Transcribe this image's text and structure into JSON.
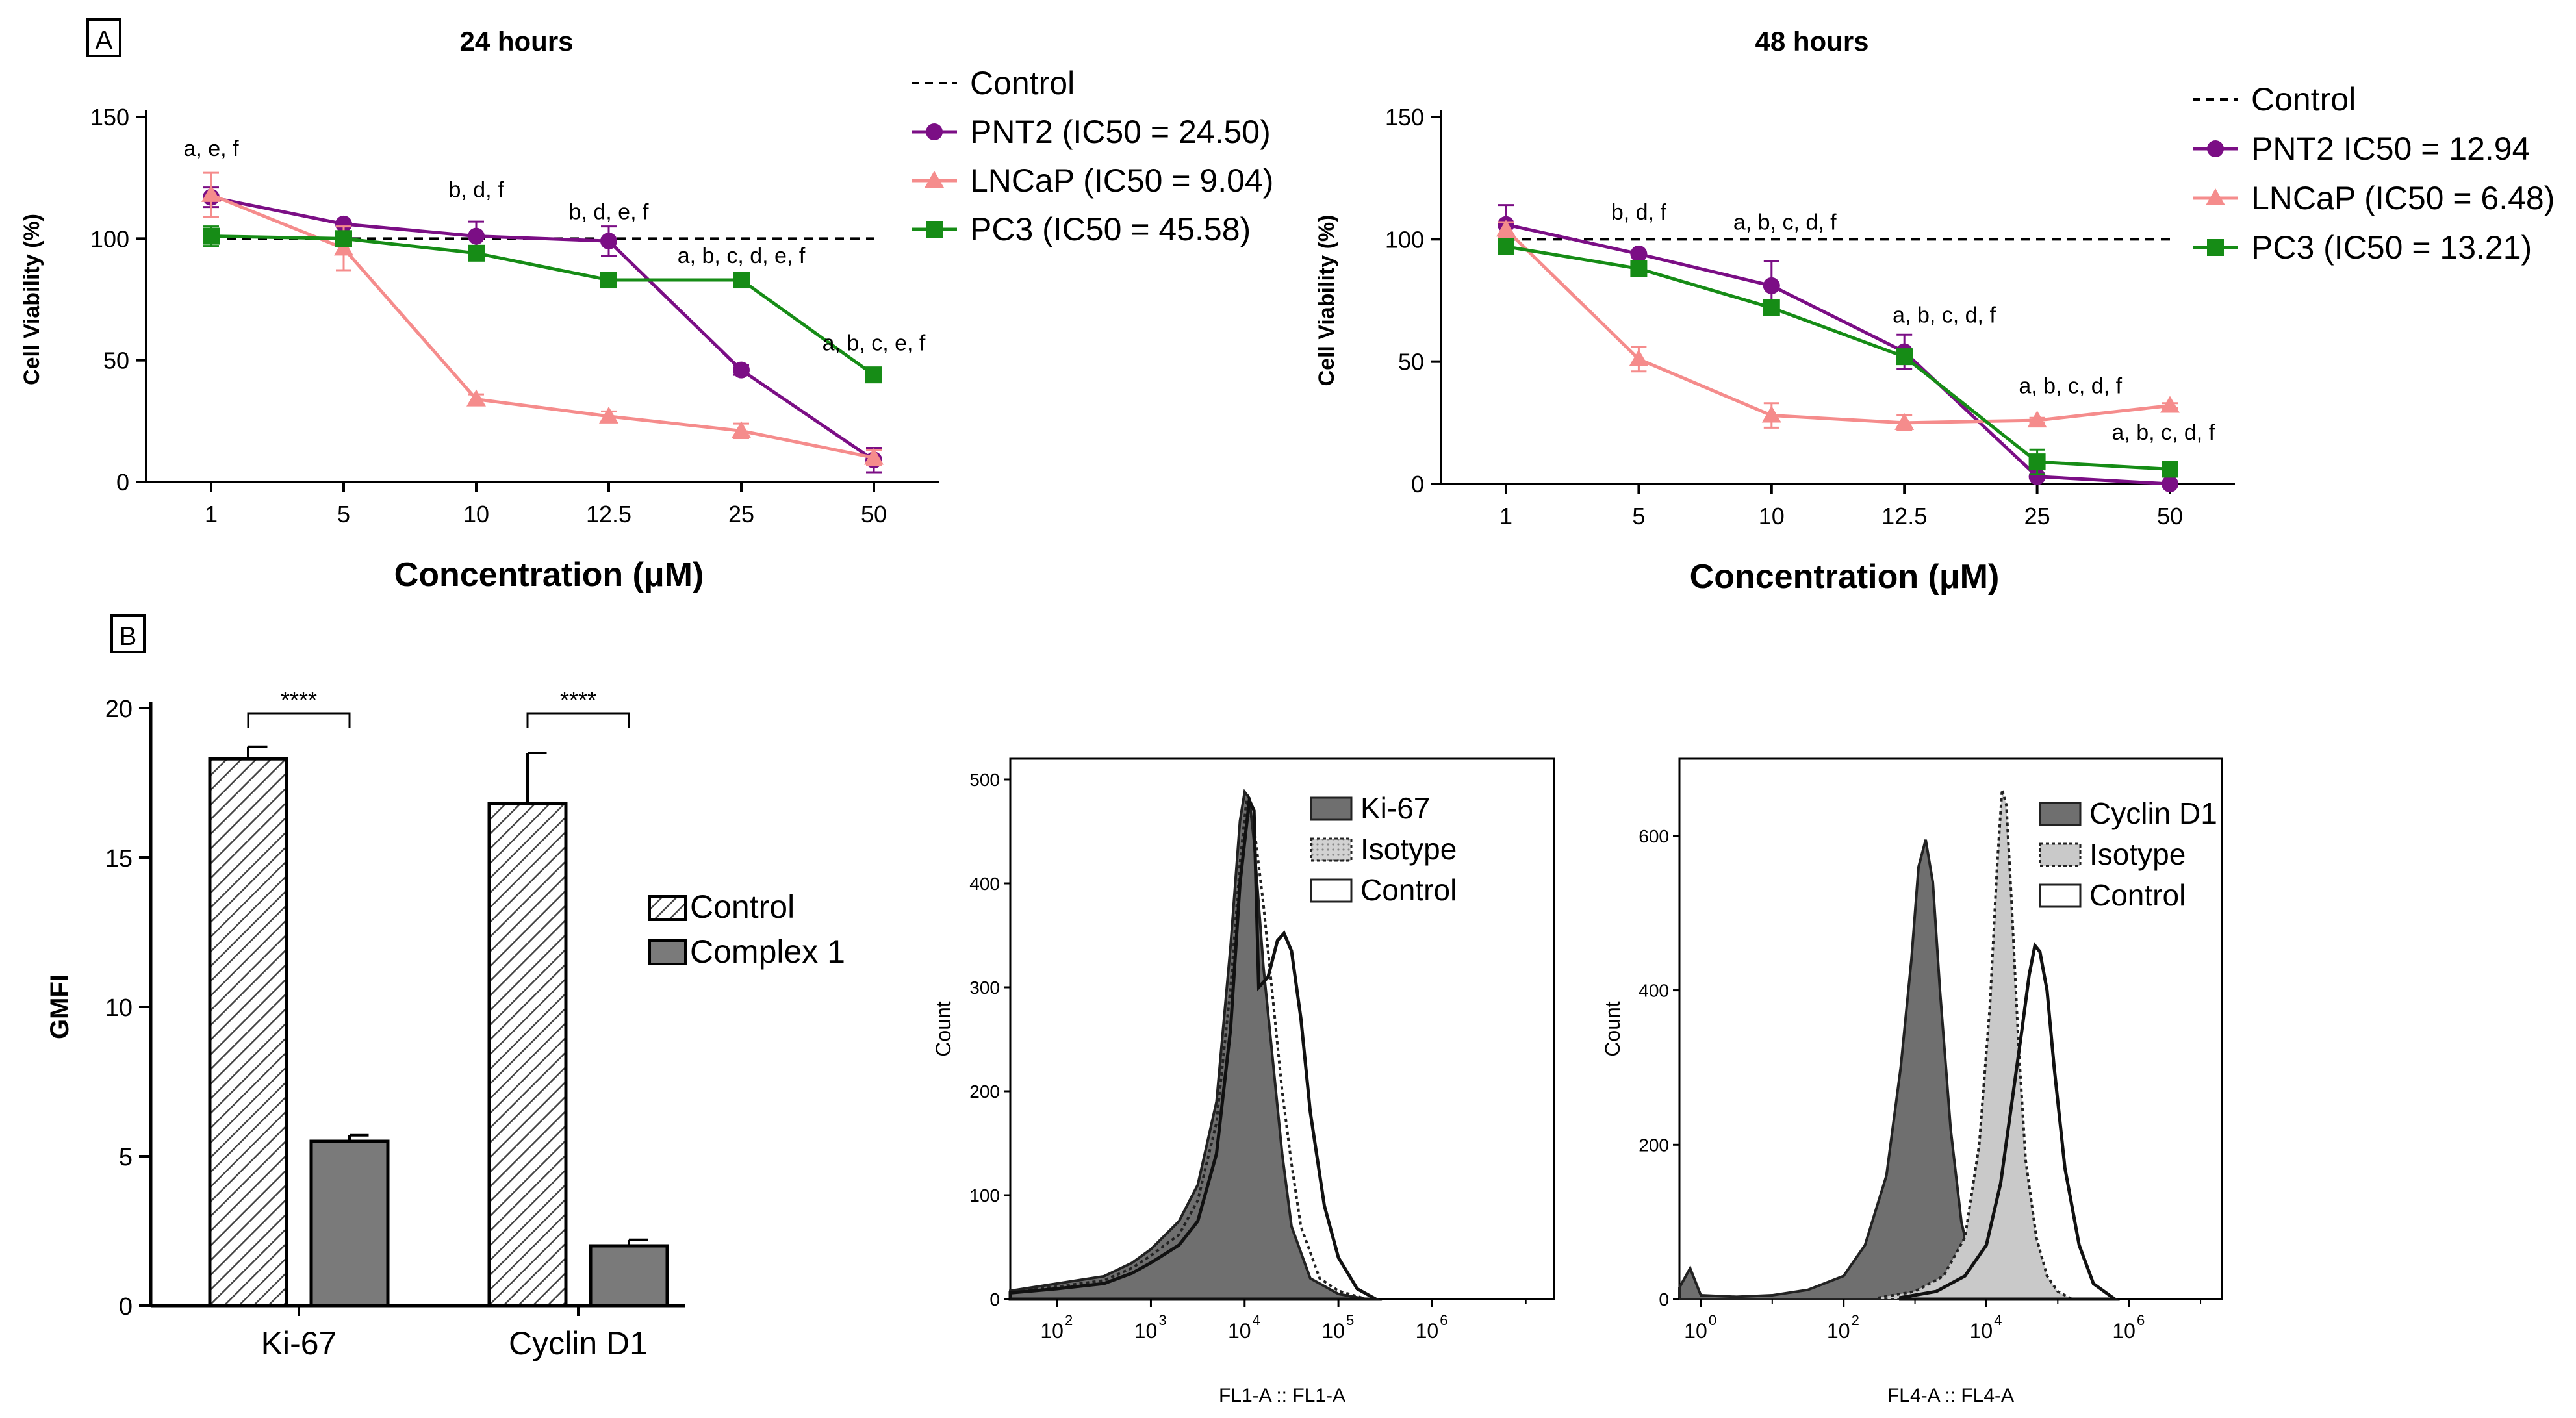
{
  "panels": {
    "A": "A",
    "B": "B"
  },
  "colors": {
    "pnt2": "#7B0E85",
    "lncap": "#F58C8C",
    "pc3": "#168C16",
    "bar_fill": "#7a7a7a",
    "hist_dark": "#6f6f6f",
    "hist_light": "#c9c9c9"
  },
  "chart_data": [
    {
      "id": "viability_24h",
      "type": "line",
      "title": "24 hours",
      "xlabel": "Concentration (μM)",
      "ylabel": "Cell Viability (%)",
      "categories": [
        "1",
        "5",
        "10",
        "12.5",
        "25",
        "50"
      ],
      "yticks": [
        "0",
        "50",
        "100",
        "150"
      ],
      "ylim": [
        0,
        150
      ],
      "control": {
        "name": "Control",
        "value": 100
      },
      "series": [
        {
          "name": "PNT2 (IC50 = 24.50)",
          "key": "pnt2",
          "marker": "circle",
          "values": [
            117,
            106,
            101,
            99,
            46,
            9
          ],
          "errors": [
            4,
            1,
            6,
            6,
            2,
            5
          ]
        },
        {
          "name": "LNCaP (IC50 = 9.04)",
          "key": "lncap",
          "marker": "triangle",
          "values": [
            118,
            96,
            34,
            27,
            21,
            10
          ],
          "errors": [
            9,
            9,
            2,
            2,
            3,
            3
          ]
        },
        {
          "name": "PC3 (IC50 = 45.58)",
          "key": "pc3",
          "marker": "square",
          "values": [
            101,
            100,
            94,
            83,
            83,
            44
          ],
          "errors": [
            4,
            2,
            2,
            2,
            1,
            1
          ]
        }
      ],
      "annotations": [
        {
          "index": 0,
          "y": 134,
          "text": "a, e, f"
        },
        {
          "index": 2,
          "y": 117,
          "text": "b, d, f"
        },
        {
          "index": 3,
          "y": 108,
          "text": "b, d, e, f"
        },
        {
          "index": 4,
          "y": 90,
          "text": "a, b, c, d, e, f"
        },
        {
          "index": 5,
          "y": 54,
          "text": "a, b, c, e, f"
        }
      ]
    },
    {
      "id": "viability_48h",
      "type": "line",
      "title": "48 hours",
      "xlabel": "Concentration (μM)",
      "ylabel": "Cell Viability (%)",
      "categories": [
        "1",
        "5",
        "10",
        "12.5",
        "25",
        "50"
      ],
      "yticks": [
        "0",
        "50",
        "100",
        "150"
      ],
      "ylim": [
        0,
        150
      ],
      "control": {
        "name": "Control",
        "value": 100
      },
      "series": [
        {
          "name": "PNT2 IC50 = 12.94",
          "key": "pnt2",
          "marker": "circle",
          "values": [
            106,
            94,
            81,
            54,
            3,
            0
          ],
          "errors": [
            8,
            1,
            10,
            7,
            1,
            1
          ]
        },
        {
          "name": "LNCaP (IC50 = 6.48)",
          "key": "lncap",
          "marker": "triangle",
          "values": [
            104,
            51,
            28,
            25,
            26,
            32
          ],
          "errors": [
            3,
            5,
            5,
            3,
            1,
            1
          ]
        },
        {
          "name": "PC3 (IC50 = 13.21)",
          "key": "pc3",
          "marker": "square",
          "values": [
            97,
            88,
            72,
            52,
            9,
            6
          ],
          "errors": [
            1,
            2,
            2,
            2,
            5,
            1
          ]
        }
      ],
      "annotations": [
        {
          "index": 1,
          "y": 108,
          "text": "b, d, f"
        },
        {
          "index": 2.1,
          "y": 104,
          "text": "a, b, c, d, f"
        },
        {
          "index": 3.3,
          "y": 66,
          "text": "a, b, c, d, f"
        },
        {
          "index": 4.25,
          "y": 37,
          "text": "a, b, c, d, f"
        },
        {
          "index": 4.95,
          "y": 18,
          "text": "a, b, c, d, f"
        }
      ]
    },
    {
      "id": "gmfi_bars",
      "type": "bar",
      "title": "",
      "xlabel": "",
      "ylabel": "GMFI",
      "categories": [
        "Ki-67",
        "Cyclin D1"
      ],
      "ylim": [
        0,
        20
      ],
      "yticks": [
        "0",
        "5",
        "10",
        "15",
        "20"
      ],
      "series": [
        {
          "name": "Control",
          "pattern": "hatched",
          "values": [
            18.3,
            16.8
          ],
          "errors": [
            0.4,
            1.7
          ]
        },
        {
          "name": "Complex 1",
          "pattern": "solid",
          "values": [
            5.5,
            2.0
          ],
          "errors": [
            0.2,
            0.2
          ]
        }
      ],
      "significance": [
        "****",
        "****"
      ]
    },
    {
      "id": "ki67_histogram",
      "type": "area",
      "title": "",
      "xlabel": "FL1-A :: FL1-A",
      "ylabel": "Count",
      "yticks": [
        "0",
        "100",
        "200",
        "300",
        "400",
        "500"
      ],
      "ylim": [
        0,
        520
      ],
      "xlim_log10": [
        1.5,
        7.3
      ],
      "xtick_bases": [
        "10",
        "10",
        "10",
        "10",
        "10"
      ],
      "xtick_exps": [
        "2",
        "3",
        "4",
        "5",
        "6"
      ],
      "series": [
        {
          "name": "Ki-67",
          "style": "dark",
          "x": [
            1.5,
            2.0,
            2.5,
            2.8,
            3.0,
            3.3,
            3.5,
            3.7,
            3.85,
            3.95,
            4.0,
            4.05,
            4.1,
            4.15,
            4.2,
            4.3,
            4.4,
            4.5,
            4.7,
            5.0,
            5.3
          ],
          "y": [
            8,
            15,
            22,
            35,
            48,
            75,
            110,
            190,
            340,
            460,
            488,
            482,
            440,
            380,
            320,
            230,
            140,
            70,
            20,
            5,
            0
          ]
        },
        {
          "name": "Isotype",
          "style": "dotted",
          "x": [
            1.5,
            2.0,
            2.5,
            2.8,
            3.0,
            3.3,
            3.5,
            3.7,
            3.85,
            3.95,
            4.02,
            4.1,
            4.2,
            4.3,
            4.4,
            4.5,
            4.6,
            4.8,
            5.0,
            5.3
          ],
          "y": [
            8,
            12,
            18,
            30,
            42,
            62,
            95,
            170,
            300,
            420,
            480,
            455,
            380,
            290,
            200,
            130,
            70,
            20,
            8,
            0
          ]
        },
        {
          "name": "Control",
          "style": "outline",
          "x": [
            1.5,
            2.0,
            2.5,
            2.8,
            3.0,
            3.3,
            3.5,
            3.7,
            3.85,
            3.95,
            4.05,
            4.1,
            4.15,
            4.25,
            4.35,
            4.42,
            4.5,
            4.6,
            4.7,
            4.85,
            5.0,
            5.2,
            5.4
          ],
          "y": [
            6,
            10,
            15,
            25,
            35,
            52,
            75,
            140,
            260,
            400,
            480,
            470,
            300,
            310,
            345,
            352,
            335,
            270,
            180,
            90,
            40,
            10,
            0
          ]
        }
      ]
    },
    {
      "id": "cyclind1_histogram",
      "type": "area",
      "title": "",
      "xlabel": "FL4-A :: FL4-A",
      "ylabel": "Count",
      "yticks": [
        "0",
        "200",
        "400",
        "600"
      ],
      "ylim": [
        0,
        700
      ],
      "xlim_log10": [
        -0.3,
        7.3
      ],
      "xtick_bases": [
        "10",
        "10",
        "10",
        "10"
      ],
      "xtick_exps": [
        "0",
        "2",
        "4",
        "6"
      ],
      "series": [
        {
          "name": "Cyclin D1",
          "style": "dark",
          "x": [
            -0.3,
            -0.15,
            0,
            0.5,
            1.0,
            1.5,
            2.0,
            2.3,
            2.6,
            2.8,
            2.95,
            3.05,
            3.15,
            3.25,
            3.35,
            3.5,
            3.65,
            3.8,
            4.0,
            4.3
          ],
          "y": [
            15,
            40,
            5,
            3,
            5,
            12,
            30,
            70,
            160,
            300,
            440,
            560,
            595,
            540,
            400,
            220,
            100,
            40,
            10,
            0
          ]
        },
        {
          "name": "Isotype",
          "style": "light",
          "x": [
            2.5,
            3.0,
            3.4,
            3.7,
            3.9,
            4.05,
            4.15,
            4.22,
            4.28,
            4.35,
            4.45,
            4.55,
            4.7,
            4.85,
            5.0,
            5.2
          ],
          "y": [
            2,
            10,
            30,
            80,
            200,
            380,
            560,
            660,
            640,
            520,
            330,
            180,
            80,
            30,
            10,
            0
          ]
        },
        {
          "name": "Control",
          "style": "outline",
          "x": [
            2.8,
            3.3,
            3.7,
            4.0,
            4.2,
            4.35,
            4.5,
            4.6,
            4.68,
            4.75,
            4.85,
            4.95,
            5.1,
            5.3,
            5.5,
            5.8
          ],
          "y": [
            2,
            10,
            30,
            70,
            150,
            250,
            350,
            420,
            458,
            450,
            400,
            300,
            170,
            70,
            20,
            0
          ]
        }
      ]
    }
  ]
}
